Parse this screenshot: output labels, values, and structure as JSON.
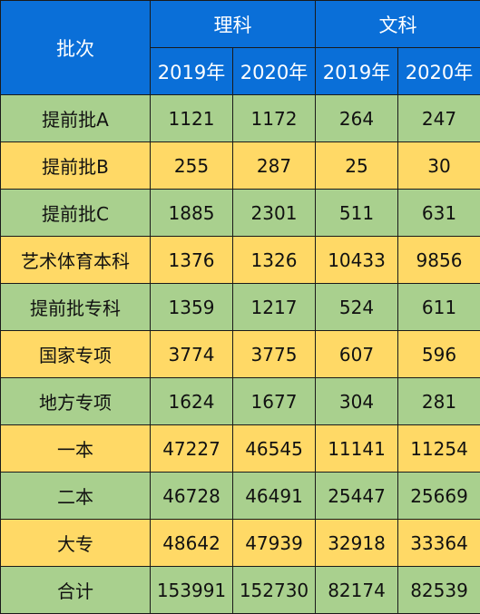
{
  "header": {
    "batch_label": "批次",
    "groups": [
      "理科",
      "文科"
    ],
    "years": [
      "2019年",
      "2020年",
      "2019年",
      "2020年"
    ]
  },
  "colors": {
    "header_blue": "#0a6fd8",
    "row_green": "#a9d08e",
    "row_yellow": "#ffd966"
  },
  "rows": [
    {
      "label": "提前批A",
      "values": [
        "1121",
        "1172",
        "264",
        "247"
      ]
    },
    {
      "label": "提前批B",
      "values": [
        "255",
        "287",
        "25",
        "30"
      ]
    },
    {
      "label": "提前批C",
      "values": [
        "1885",
        "2301",
        "511",
        "631"
      ]
    },
    {
      "label": "艺术体育本科",
      "values": [
        "1376",
        "1326",
        "10433",
        "9856"
      ]
    },
    {
      "label": "提前批专科",
      "values": [
        "1359",
        "1217",
        "524",
        "611"
      ]
    },
    {
      "label": "国家专项",
      "values": [
        "3774",
        "3775",
        "607",
        "596"
      ]
    },
    {
      "label": "地方专项",
      "values": [
        "1624",
        "1677",
        "304",
        "281"
      ]
    },
    {
      "label": "一本",
      "values": [
        "47227",
        "46545",
        "11141",
        "11254"
      ]
    },
    {
      "label": "二本",
      "values": [
        "46728",
        "46491",
        "25447",
        "25669"
      ]
    },
    {
      "label": "大专",
      "values": [
        "48642",
        "47939",
        "32918",
        "33364"
      ]
    },
    {
      "label": "合计",
      "values": [
        "153991",
        "152730",
        "82174",
        "82539"
      ]
    }
  ]
}
